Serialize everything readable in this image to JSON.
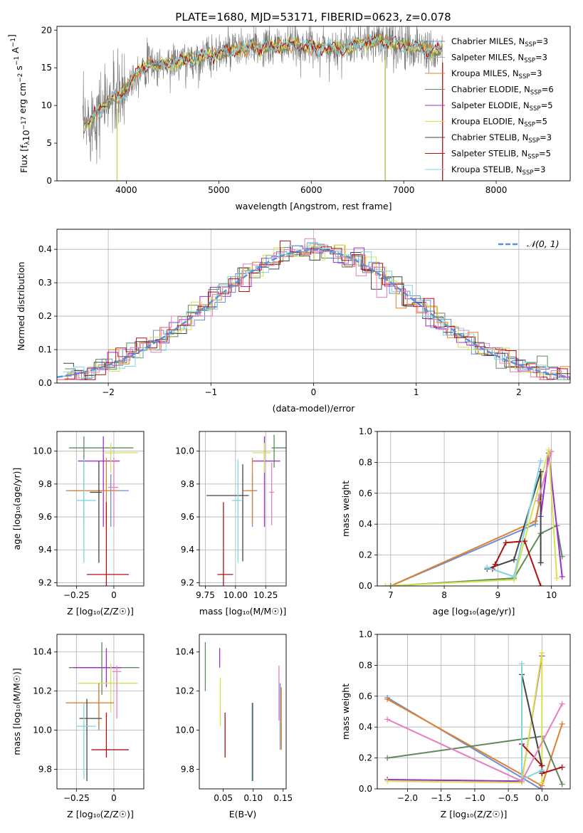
{
  "figure": {
    "title": "PLATE=1680, MJD=53171, FIBERID=0623, z=0.078"
  },
  "models": [
    {
      "name": "Chabrier MILES",
      "nssp": "3",
      "color": "#6a8fd6"
    },
    {
      "name": "Salpeter MILES",
      "nssp": "3",
      "color": "#b0b0b0"
    },
    {
      "name": "Kroupa MILES",
      "nssp": "3",
      "color": "#e0812f"
    },
    {
      "name": "Chabrier ELODIE",
      "nssp": "6",
      "color": "#5e8a5e"
    },
    {
      "name": "Salpeter ELODIE",
      "nssp": "5",
      "color": "#9b30c8"
    },
    {
      "name": "Kroupa ELODIE",
      "nssp": "5",
      "color": "#d8e050"
    },
    {
      "name": "Chabrier STELIB",
      "nssp": "3",
      "color": "#454545"
    },
    {
      "name": "Salpeter STELIB",
      "nssp": "5",
      "color": "#b01010"
    },
    {
      "name": "Kroupa STELIB",
      "nssp": "3",
      "color": "#7fd6e0"
    }
  ],
  "extra_colors": {
    "pink": "#e67fbd",
    "gray_line": "#777777",
    "gaussian": "#5b8fd9"
  },
  "chart_data": [
    {
      "id": "spectrum",
      "type": "line",
      "xlabel": "wavelength [Angstrom, rest frame]",
      "ylabel": "Flux [f_λ 10^-17 erg cm^-2 s^-1 A^-1]",
      "xlim": [
        3250,
        8800
      ],
      "ylim": [
        0,
        20.5
      ],
      "xticks": [
        4000,
        5000,
        6000,
        7000,
        8000
      ],
      "yticks": [
        0,
        5,
        10,
        15,
        20
      ],
      "legend": "right",
      "series": [
        {
          "name": "data",
          "x": [
            3550,
            3650,
            3750,
            3850,
            3950,
            4050,
            4150,
            4250,
            4350,
            4500,
            4700,
            4900,
            5100,
            5300,
            5500,
            5700,
            5900,
            6100,
            6300,
            6500,
            6700,
            6900,
            7100,
            7300,
            7400
          ],
          "y": [
            7.2,
            8.8,
            9.8,
            11.2,
            11.0,
            13.5,
            14.8,
            15.6,
            15.3,
            15.7,
            16.0,
            16.7,
            17.2,
            17.6,
            17.6,
            17.9,
            18.0,
            17.7,
            17.6,
            18.0,
            18.6,
            18.2,
            17.8,
            17.4,
            17.2
          ]
        }
      ],
      "dropouts": [
        3900,
        6800,
        7420
      ]
    },
    {
      "id": "residuals",
      "type": "histogram",
      "xlabel": "(data-model)/error",
      "ylabel": "Normed distribution",
      "xlim": [
        -2.5,
        2.5
      ],
      "ylim": [
        0,
        0.46
      ],
      "xticks": [
        -2,
        -1,
        0,
        1,
        2
      ],
      "yticks": [
        0.0,
        0.1,
        0.2,
        0.3,
        0.4
      ],
      "grid": true,
      "legend": "top-right",
      "reference": {
        "name": "𝒩(0, 1)",
        "mean": 0,
        "sigma": 1
      },
      "bin_width": 0.1
    },
    {
      "id": "age_vs_Z",
      "type": "errorbar",
      "xlabel": "Z [log10(Z/Z☉)]",
      "ylabel": "age [log10(age/yr)]",
      "xlim": [
        -0.38,
        0.2
      ],
      "ylim": [
        9.18,
        10.12
      ],
      "xticks": [
        -0.25,
        0.0
      ],
      "yticks": [
        9.2,
        9.4,
        9.6,
        9.8,
        10.0
      ],
      "grid": true,
      "points": [
        {
          "x": -0.2,
          "xerr": [
            0.1,
            0.33
          ],
          "y": 10.02,
          "yerr": [
            0.47,
            0.07
          ],
          "c": 3
        },
        {
          "x": -0.07,
          "xerr": [
            0.17,
            0.11
          ],
          "y": 9.94,
          "yerr": [
            0.4,
            0.15
          ],
          "c": 4
        },
        {
          "x": -0.02,
          "xerr": [
            0.05,
            0.18
          ],
          "y": 9.99,
          "yerr": [
            0.12,
            0.06
          ],
          "c": 5
        },
        {
          "x": -0.02,
          "xerr": [
            0.3,
            0.12
          ],
          "y": 9.76,
          "yerr": [
            0.22,
            0.1
          ],
          "c": 0
        },
        {
          "x": -0.05,
          "xerr": [
            0.25,
            0.08
          ],
          "y": 9.76,
          "yerr": [
            0.2,
            0.2
          ],
          "c": 2
        },
        {
          "x": -0.1,
          "xerr": [
            0.06,
            0.02
          ],
          "y": 9.75,
          "yerr": [
            0.43,
            0.19
          ],
          "c": 6
        },
        {
          "x": -0.2,
          "xerr": [
            0.05,
            0.08
          ],
          "y": 9.7,
          "yerr": [
            0.38,
            0.25
          ],
          "c": 8
        },
        {
          "x": 0.0,
          "xerr": [
            0.04,
            0.03
          ],
          "y": 9.78,
          "yerr": [
            0.24,
            0.18
          ],
          "c": 9
        },
        {
          "x": -0.05,
          "xerr": [
            0.13,
            0.15
          ],
          "y": 9.25,
          "yerr": [
            0.07,
            0.44
          ],
          "c": 7
        }
      ]
    },
    {
      "id": "age_vs_mass",
      "type": "errorbar",
      "xlabel": "mass [log10(M/M☉)]",
      "ylabel": "",
      "xlim": [
        9.7,
        10.42
      ],
      "ylim": [
        9.18,
        10.12
      ],
      "xticks": [
        9.75,
        10.0,
        10.25
      ],
      "tick_labels": [
        "9.75",
        "10.00",
        "10.25"
      ],
      "yticks": [
        9.2,
        9.4,
        9.6,
        9.8,
        10.0
      ],
      "grid": true,
      "points": [
        {
          "x": 10.32,
          "xerr": [
            0.02,
            0.15
          ],
          "y": 10.02,
          "yerr": [
            0.12,
            0.08
          ],
          "c": 3
        },
        {
          "x": 10.24,
          "xerr": [
            0.1,
            0.13
          ],
          "y": 9.94,
          "yerr": [
            0.4,
            0.15
          ],
          "c": 4
        },
        {
          "x": 10.24,
          "xerr": [
            0.1,
            0.05
          ],
          "y": 9.99,
          "yerr": [
            0.12,
            0.06
          ],
          "c": 5
        },
        {
          "x": 10.14,
          "xerr": [
            0.05,
            0.04
          ],
          "y": 9.76,
          "yerr": [
            0.22,
            0.1
          ],
          "c": 0
        },
        {
          "x": 10.14,
          "xerr": [
            0.08,
            0.02
          ],
          "y": 9.76,
          "yerr": [
            0.2,
            0.2
          ],
          "c": 2
        },
        {
          "x": 10.06,
          "xerr": [
            0.3,
            0.05
          ],
          "y": 9.73,
          "yerr": [
            0.4,
            0.19
          ],
          "c": 6
        },
        {
          "x": 10.02,
          "xerr": [
            0.05,
            0.03
          ],
          "y": 9.7,
          "yerr": [
            0.38,
            0.25
          ],
          "c": 8
        },
        {
          "x": 10.3,
          "xerr": [
            0.02,
            0.02
          ],
          "y": 9.75,
          "yerr": [
            0.2,
            0.18
          ],
          "c": 9
        },
        {
          "x": 9.9,
          "xerr": [
            0.05,
            0.08
          ],
          "y": 9.25,
          "yerr": [
            0.07,
            0.44
          ],
          "c": 7
        }
      ]
    },
    {
      "id": "weight_vs_age",
      "type": "line",
      "xlabel": "age [log10(age/yr)]",
      "ylabel": "mass weight",
      "xlim": [
        6.75,
        10.35
      ],
      "ylim": [
        0,
        1.0
      ],
      "xticks": [
        7,
        8,
        9,
        10
      ],
      "yticks": [
        0.0,
        0.2,
        0.4,
        0.6,
        0.8,
        1.0
      ],
      "grid": true,
      "series": [
        {
          "c": 0,
          "x": [
            7.0,
            9.7,
            9.8
          ],
          "y": [
            0.0,
            0.4,
            0.59
          ]
        },
        {
          "c": 2,
          "x": [
            7.0,
            9.7,
            9.8
          ],
          "y": [
            0.0,
            0.42,
            0.58
          ]
        },
        {
          "c": 3,
          "x": [
            7.0,
            9.3,
            9.8,
            10.1,
            10.2
          ],
          "y": [
            0.0,
            0.05,
            0.34,
            0.39,
            0.19
          ]
        },
        {
          "c": 4,
          "x": [
            9.8,
            9.95,
            10.2
          ],
          "y": [
            0.45,
            0.86,
            0.06
          ]
        },
        {
          "c": 5,
          "x": [
            6.9,
            9.3,
            9.95,
            10.1
          ],
          "y": [
            0.0,
            0.04,
            0.88,
            0.05
          ]
        },
        {
          "c": 6,
          "x": [
            8.8,
            9.3,
            9.8,
            9.8
          ],
          "y": [
            0.11,
            0.17,
            0.74,
            0.15
          ]
        },
        {
          "c": 7,
          "x": [
            8.9,
            8.95,
            9.15,
            9.5,
            9.8
          ],
          "y": [
            0.11,
            0.14,
            0.28,
            0.29,
            0.0
          ]
        },
        {
          "c": 8,
          "x": [
            8.8,
            9.3,
            9.8
          ],
          "y": [
            0.12,
            0.06,
            0.81
          ]
        },
        {
          "c": 9,
          "x": [
            9.75,
            10.0
          ],
          "y": [
            0.55,
            0.87
          ]
        }
      ]
    },
    {
      "id": "mass_vs_Z",
      "type": "errorbar",
      "xlabel": "Z [log10(Z/Z☉)]",
      "ylabel": "mass [log10(M/M☉)]",
      "xlim": [
        -0.38,
        0.2
      ],
      "ylim": [
        9.7,
        10.49
      ],
      "xticks": [
        -0.25,
        0.0
      ],
      "yticks": [
        9.8,
        10.0,
        10.2,
        10.4
      ],
      "grid": true,
      "points": [
        {
          "x": -0.08,
          "xerr": [
            0.22,
            0.25
          ],
          "y": 10.32,
          "yerr": [
            0.14,
            0.13
          ],
          "c": 3
        },
        {
          "x": -0.05,
          "xerr": [
            0.22,
            0.1
          ],
          "y": 10.32,
          "yerr": [
            0.1,
            0.1
          ],
          "c": 4
        },
        {
          "x": -0.02,
          "xerr": [
            0.22,
            0.18
          ],
          "y": 10.24,
          "yerr": [
            0.15,
            0.1
          ],
          "c": 5
        },
        {
          "x": -0.1,
          "xerr": [
            0.22,
            0.1
          ],
          "y": 10.14,
          "yerr": [
            0.14,
            0.1
          ],
          "c": 0
        },
        {
          "x": -0.1,
          "xerr": [
            0.22,
            0.1
          ],
          "y": 10.14,
          "yerr": [
            0.12,
            0.1
          ],
          "c": 2
        },
        {
          "x": -0.18,
          "xerr": [
            0.05,
            0.1
          ],
          "y": 10.06,
          "yerr": [
            0.32,
            0.1
          ],
          "c": 6
        },
        {
          "x": -0.2,
          "xerr": [
            0.05,
            0.08
          ],
          "y": 10.02,
          "yerr": [
            0.27,
            0.12
          ],
          "c": 8
        },
        {
          "x": 0.02,
          "xerr": [
            0.03,
            0.03
          ],
          "y": 10.3,
          "yerr": [
            0.24,
            0.03
          ],
          "c": 9
        },
        {
          "x": -0.05,
          "xerr": [
            0.1,
            0.15
          ],
          "y": 9.9,
          "yerr": [
            0.04,
            0.19
          ],
          "c": 7
        }
      ]
    },
    {
      "id": "mass_vs_EBV",
      "type": "errorbar",
      "xlabel": "E(B-V)",
      "ylabel": "",
      "xlim": [
        0.01,
        0.155
      ],
      "ylim": [
        9.7,
        10.49
      ],
      "xticks": [
        0.05,
        0.1,
        0.15
      ],
      "tick_labels": [
        "0.05",
        "0.10",
        "0.15"
      ],
      "yticks": [
        9.8,
        10.0,
        10.2,
        10.4
      ],
      "grid": false,
      "points": [
        {
          "x": 0.02,
          "y": 10.32,
          "yerr": [
            0.12,
            0.13
          ],
          "c": 3
        },
        {
          "x": 0.044,
          "y": 10.37,
          "yerr": [
            0.05,
            0.05
          ],
          "c": 4
        },
        {
          "x": 0.045,
          "y": 10.17,
          "yerr": [
            0.15,
            0.1
          ],
          "c": 5
        },
        {
          "x": 0.053,
          "y": 9.97,
          "yerr": [
            0.11,
            0.12
          ],
          "c": 7
        },
        {
          "x": 0.098,
          "y": 10.02,
          "yerr": [
            0.28,
            0.12
          ],
          "c": 8
        },
        {
          "x": 0.099,
          "y": 10.06,
          "yerr": [
            0.32,
            0.08
          ],
          "c": 6
        },
        {
          "x": 0.143,
          "y": 10.2,
          "yerr": [
            0.15,
            0.13
          ],
          "c": 9
        },
        {
          "x": 0.145,
          "y": 10.14,
          "yerr": [
            0.24,
            0.1
          ],
          "c": 0
        },
        {
          "x": 0.147,
          "y": 10.12,
          "yerr": [
            0.22,
            0.1
          ],
          "c": 2
        }
      ]
    },
    {
      "id": "weight_vs_Z",
      "type": "line",
      "xlabel": "Z [log10(Z/Z☉)]",
      "ylabel": "mass weight",
      "xlim": [
        -2.45,
        0.42
      ],
      "ylim": [
        0,
        1.0
      ],
      "xticks": [
        -2.0,
        -1.5,
        -1.0,
        -0.5,
        0.0
      ],
      "tick_labels": [
        "−2.0",
        "−1.5",
        "−1.0",
        "−0.5",
        "0.0"
      ],
      "yticks": [
        0.0,
        0.2,
        0.4,
        0.6,
        0.8,
        1.0
      ],
      "grid": true,
      "series": [
        {
          "c": 0,
          "x": [
            -2.3,
            -0.02
          ],
          "y": [
            0.59,
            0.0
          ]
        },
        {
          "c": 2,
          "x": [
            -2.3,
            0.0,
            0.3
          ],
          "y": [
            0.58,
            0.02,
            0.42
          ]
        },
        {
          "c": 3,
          "x": [
            -2.3,
            0.0,
            0.3
          ],
          "y": [
            0.2,
            0.34,
            0.03
          ]
        },
        {
          "c": 4,
          "x": [
            -2.3,
            -0.3,
            0.0
          ],
          "y": [
            0.06,
            0.05,
            0.86
          ]
        },
        {
          "c": 5,
          "x": [
            -2.3,
            -0.3,
            0.0,
            0.0
          ],
          "y": [
            0.05,
            0.04,
            0.88,
            0.04
          ]
        },
        {
          "c": 6,
          "x": [
            -0.3,
            0.0,
            0.0
          ],
          "y": [
            0.74,
            0.15,
            0.11
          ]
        },
        {
          "c": 7,
          "x": [
            -0.3,
            0.0,
            0.0,
            0.3
          ],
          "y": [
            0.29,
            0.15,
            0.1,
            0.14
          ]
        },
        {
          "c": 8,
          "x": [
            -0.3,
            -0.3,
            0.0
          ],
          "y": [
            0.81,
            0.06,
            0.12
          ]
        },
        {
          "c": 9,
          "x": [
            -2.3,
            -0.3,
            0.3
          ],
          "y": [
            0.45,
            0.05,
            0.55
          ]
        }
      ]
    }
  ]
}
